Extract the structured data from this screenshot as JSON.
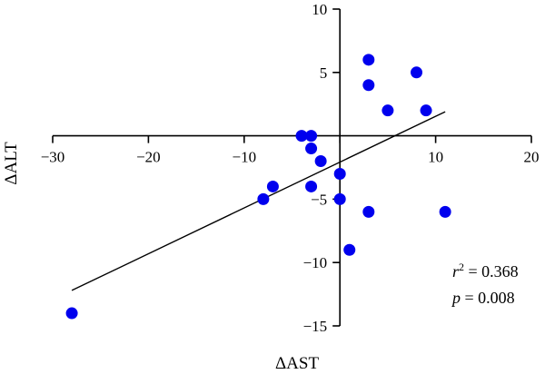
{
  "chart_data": {
    "type": "scatter",
    "xlabel": "ΔAST",
    "ylabel": "ΔALT",
    "xlim": [
      -30,
      20
    ],
    "ylim": [
      -15,
      10
    ],
    "x_ticks": [
      -30,
      -20,
      -10,
      0,
      10,
      20
    ],
    "y_ticks": [
      -15,
      -10,
      -5,
      5,
      10
    ],
    "x_tick_labels": [
      "−30",
      "−20",
      "−10",
      "",
      "10",
      "20"
    ],
    "y_tick_labels": [
      "−15",
      "−10",
      "−5",
      "5",
      "10"
    ],
    "points": [
      {
        "x": -28,
        "y": -14
      },
      {
        "x": -8,
        "y": -5
      },
      {
        "x": -7,
        "y": -4
      },
      {
        "x": -4,
        "y": 0
      },
      {
        "x": -3,
        "y": 0
      },
      {
        "x": -3,
        "y": -1
      },
      {
        "x": -2,
        "y": -2
      },
      {
        "x": -3,
        "y": -4
      },
      {
        "x": 0,
        "y": -3
      },
      {
        "x": 0,
        "y": -5
      },
      {
        "x": 1,
        "y": -9
      },
      {
        "x": 3,
        "y": 6
      },
      {
        "x": 3,
        "y": 4
      },
      {
        "x": 3,
        "y": -6
      },
      {
        "x": 5,
        "y": 2
      },
      {
        "x": 8,
        "y": 5
      },
      {
        "x": 9,
        "y": 2
      },
      {
        "x": 11,
        "y": -6
      }
    ],
    "regression_line": {
      "x1": -28,
      "y1": -12.2,
      "x2": 11,
      "y2": 1.9
    },
    "marker_color": "#0000ee",
    "grid": false,
    "legend": "none",
    "annotations": {
      "r2_symbol": "r",
      "r2_exponent": "2",
      "r2_value": " = 0.368",
      "p_symbol": "p",
      "p_value": " = 0.008"
    }
  }
}
